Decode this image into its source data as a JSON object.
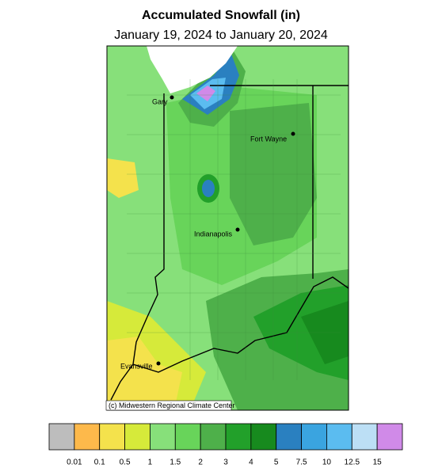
{
  "header": {
    "title": "Accumulated Snowfall (in)",
    "subtitle": "January 19, 2024 to January 20, 2024"
  },
  "map": {
    "cities": [
      {
        "label": "Gary"
      },
      {
        "label": "Fort Wayne"
      },
      {
        "label": "Indianapolis"
      },
      {
        "label": "Evansville"
      }
    ],
    "credit": "(c) Midwestern Regional Climate Center"
  },
  "legend": {
    "colors": [
      "#bdbdbd",
      "#fdb94b",
      "#f4e24c",
      "#d6ea3a",
      "#87e07a",
      "#68d45a",
      "#4eb04a",
      "#22a02a",
      "#178a1e",
      "#2a80c0",
      "#3aa4e0",
      "#5bbcf0",
      "#bcdff5",
      "#d08ae8"
    ],
    "labels": [
      "0.01",
      "0.1",
      "0.5",
      "1",
      "1.5",
      "2",
      "3",
      "4",
      "5",
      "7.5",
      "10",
      "12.5",
      "15"
    ]
  }
}
